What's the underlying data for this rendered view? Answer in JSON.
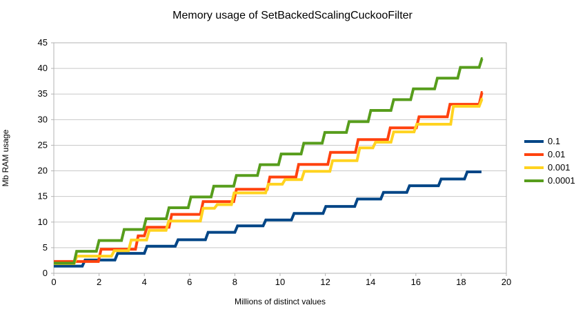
{
  "chart_data": {
    "type": "line",
    "subtype": "step",
    "title": "Memory usage of SetBackedScalingCuckooFilter",
    "xlabel": "Millions of distinct values",
    "ylabel": "Mb RAM usage",
    "xlim": [
      0,
      20
    ],
    "ylim": [
      0,
      45
    ],
    "xstep": 2,
    "ystep": 5,
    "grid": "horizontal",
    "legend_position": "right",
    "colors": {
      "grid": "#c8c8c8",
      "border": "#b3b3b3",
      "text": "#000000",
      "background": "#ffffff"
    },
    "series": [
      {
        "name": "0.1",
        "color": "#004586",
        "points": [
          [
            0,
            1.4
          ],
          [
            1.26,
            1.4
          ],
          [
            1.38,
            2.6
          ],
          [
            2.7,
            2.6
          ],
          [
            2.82,
            3.9
          ],
          [
            4.0,
            3.9
          ],
          [
            4.12,
            5.3
          ],
          [
            5.37,
            5.3
          ],
          [
            5.49,
            6.55
          ],
          [
            6.7,
            6.55
          ],
          [
            6.82,
            8.0
          ],
          [
            8.0,
            8.0
          ],
          [
            8.12,
            9.25
          ],
          [
            9.25,
            9.25
          ],
          [
            9.37,
            10.4
          ],
          [
            10.5,
            10.4
          ],
          [
            10.62,
            11.7
          ],
          [
            11.9,
            11.7
          ],
          [
            12.02,
            13.05
          ],
          [
            13.3,
            13.05
          ],
          [
            13.42,
            14.5
          ],
          [
            14.45,
            14.5
          ],
          [
            14.57,
            15.8
          ],
          [
            15.6,
            15.8
          ],
          [
            15.72,
            17.1
          ],
          [
            17.0,
            17.1
          ],
          [
            17.12,
            18.4
          ],
          [
            18.15,
            18.4
          ],
          [
            18.27,
            19.8
          ],
          [
            18.9,
            19.8
          ]
        ]
      },
      {
        "name": "0.01",
        "color": "#FF420E",
        "points": [
          [
            0,
            2.3
          ],
          [
            1.97,
            2.3
          ],
          [
            2.09,
            4.7
          ],
          [
            3.61,
            4.7
          ],
          [
            3.73,
            7.3
          ],
          [
            4.0,
            7.3
          ],
          [
            4.12,
            9.0
          ],
          [
            5.09,
            9.0
          ],
          [
            5.21,
            11.5
          ],
          [
            6.48,
            11.5
          ],
          [
            6.6,
            14.0
          ],
          [
            7.95,
            14.0
          ],
          [
            8.07,
            16.4
          ],
          [
            9.43,
            16.4
          ],
          [
            9.55,
            18.8
          ],
          [
            10.7,
            18.8
          ],
          [
            10.82,
            21.25
          ],
          [
            12.11,
            21.25
          ],
          [
            12.23,
            23.6
          ],
          [
            13.33,
            23.6
          ],
          [
            13.45,
            26.1
          ],
          [
            14.75,
            26.1
          ],
          [
            14.87,
            28.4
          ],
          [
            16.02,
            28.4
          ],
          [
            16.14,
            30.55
          ],
          [
            17.39,
            30.55
          ],
          [
            17.51,
            33.0
          ],
          [
            18.8,
            33.0
          ],
          [
            18.92,
            35.3
          ],
          [
            18.95,
            35.3
          ]
        ]
      },
      {
        "name": "0.001",
        "color": "#FFD320",
        "points": [
          [
            0,
            1.9
          ],
          [
            0.9,
            1.9
          ],
          [
            1.02,
            3.35
          ],
          [
            2.55,
            3.35
          ],
          [
            2.67,
            4.4
          ],
          [
            3.3,
            4.4
          ],
          [
            3.42,
            6.5
          ],
          [
            4.1,
            6.5
          ],
          [
            4.22,
            8.4
          ],
          [
            4.96,
            8.4
          ],
          [
            5.08,
            10.2
          ],
          [
            6.48,
            10.2
          ],
          [
            6.6,
            12.7
          ],
          [
            7.1,
            12.7
          ],
          [
            7.22,
            13.4
          ],
          [
            7.85,
            13.4
          ],
          [
            7.97,
            15.7
          ],
          [
            9.36,
            15.7
          ],
          [
            9.48,
            17.4
          ],
          [
            10.1,
            17.4
          ],
          [
            10.22,
            18.3
          ],
          [
            10.95,
            18.3
          ],
          [
            11.07,
            19.9
          ],
          [
            12.2,
            19.9
          ],
          [
            12.32,
            22.0
          ],
          [
            13.4,
            22.0
          ],
          [
            13.52,
            24.5
          ],
          [
            14.1,
            24.5
          ],
          [
            14.22,
            25.6
          ],
          [
            14.9,
            25.6
          ],
          [
            15.02,
            27.6
          ],
          [
            15.92,
            27.6
          ],
          [
            16.04,
            29.1
          ],
          [
            17.54,
            29.1
          ],
          [
            17.66,
            32.6
          ],
          [
            18.8,
            32.6
          ],
          [
            18.92,
            34.0
          ],
          [
            18.95,
            34.0
          ]
        ]
      },
      {
        "name": "0.0001",
        "color": "#579D1C",
        "points": [
          [
            0,
            2.0
          ],
          [
            0.89,
            2.0
          ],
          [
            1.01,
            4.3
          ],
          [
            1.88,
            4.3
          ],
          [
            2.0,
            6.4
          ],
          [
            2.99,
            6.4
          ],
          [
            3.11,
            8.55
          ],
          [
            3.96,
            8.55
          ],
          [
            4.08,
            10.65
          ],
          [
            4.97,
            10.65
          ],
          [
            5.09,
            12.8
          ],
          [
            5.94,
            12.8
          ],
          [
            6.06,
            14.9
          ],
          [
            6.95,
            14.9
          ],
          [
            7.07,
            17.0
          ],
          [
            7.95,
            17.0
          ],
          [
            8.07,
            19.1
          ],
          [
            9.0,
            19.1
          ],
          [
            9.12,
            21.2
          ],
          [
            9.93,
            21.2
          ],
          [
            10.05,
            23.3
          ],
          [
            10.93,
            23.3
          ],
          [
            11.05,
            25.4
          ],
          [
            11.86,
            25.4
          ],
          [
            11.98,
            27.5
          ],
          [
            12.93,
            27.5
          ],
          [
            13.05,
            29.6
          ],
          [
            13.89,
            29.6
          ],
          [
            14.01,
            31.8
          ],
          [
            14.9,
            31.8
          ],
          [
            15.02,
            33.9
          ],
          [
            15.77,
            33.9
          ],
          [
            15.89,
            36.0
          ],
          [
            16.83,
            36.0
          ],
          [
            16.95,
            38.1
          ],
          [
            17.85,
            38.1
          ],
          [
            17.97,
            40.2
          ],
          [
            18.8,
            40.2
          ],
          [
            18.92,
            41.9
          ],
          [
            18.95,
            41.9
          ]
        ]
      }
    ],
    "x_tick_labels": [
      "0",
      "2",
      "4",
      "6",
      "8",
      "10",
      "12",
      "14",
      "16",
      "18",
      "20"
    ],
    "y_tick_labels": [
      "0",
      "5",
      "10",
      "15",
      "20",
      "25",
      "30",
      "35",
      "40",
      "45"
    ]
  }
}
